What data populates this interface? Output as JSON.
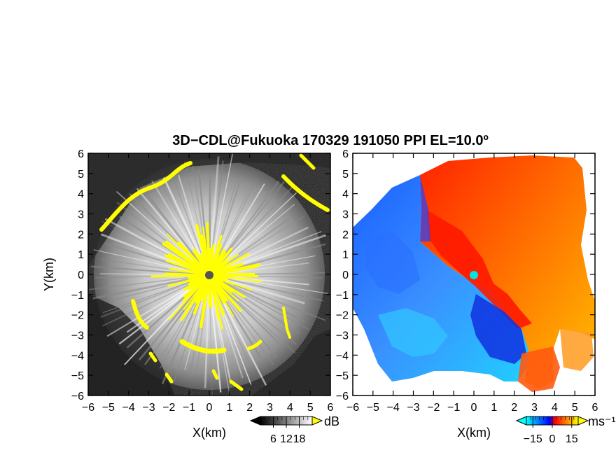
{
  "chart_data": [
    {
      "type": "heatmap",
      "title": "3D−CDL@Fukuoka 170329 191050 PPI EL=10.0º",
      "panel": "left",
      "xlabel": "X(km)",
      "ylabel": "Y(km)",
      "xlim": [
        -6,
        6
      ],
      "ylim": [
        -6,
        6
      ],
      "xticks": [
        "−6",
        "−5",
        "−4",
        "−3",
        "−2",
        "−1",
        "0",
        "1",
        "2",
        "3",
        "4",
        "5",
        "6"
      ],
      "yticks": [
        "6",
        "5",
        "4",
        "3",
        "2",
        "1",
        "0",
        "−1",
        "−2",
        "−3",
        "−4",
        "−5",
        "−6"
      ],
      "colorbar": {
        "unit": "dB",
        "ticks": [
          "6",
          "12",
          "18"
        ],
        "range": [
          0,
          24
        ],
        "colors": [
          "#000000",
          "#ffffff"
        ],
        "extend": "both",
        "over_color": "#ffff00"
      },
      "background": "#1a1a1a",
      "max_range_km": 5.9,
      "radar_site": [
        0,
        0
      ],
      "radar_marker_color": "#555555"
    },
    {
      "type": "heatmap",
      "panel": "right",
      "xlabel": "X(km)",
      "xlim": [
        -6,
        6
      ],
      "ylim": [
        -6,
        6
      ],
      "xticks": [
        "−6",
        "−5",
        "−4",
        "−3",
        "−2",
        "−1",
        "0",
        "1",
        "2",
        "3",
        "4",
        "5",
        "6"
      ],
      "yticks": [
        "6",
        "5",
        "4",
        "3",
        "2",
        "1",
        "0",
        "−1",
        "−2",
        "−3",
        "−4",
        "−5",
        "−6"
      ],
      "colorbar": {
        "unit": "ms⁻¹",
        "ticks": [
          "−15",
          "0",
          "15"
        ],
        "range": [
          -20,
          20
        ],
        "colors": [
          "#00ffff",
          "#0000ff",
          "#ff0000",
          "#ffff00"
        ],
        "extend": "both"
      },
      "background": "#ffffff",
      "radar_site": [
        0,
        0
      ],
      "radar_marker_color": "#00e5e5"
    }
  ]
}
